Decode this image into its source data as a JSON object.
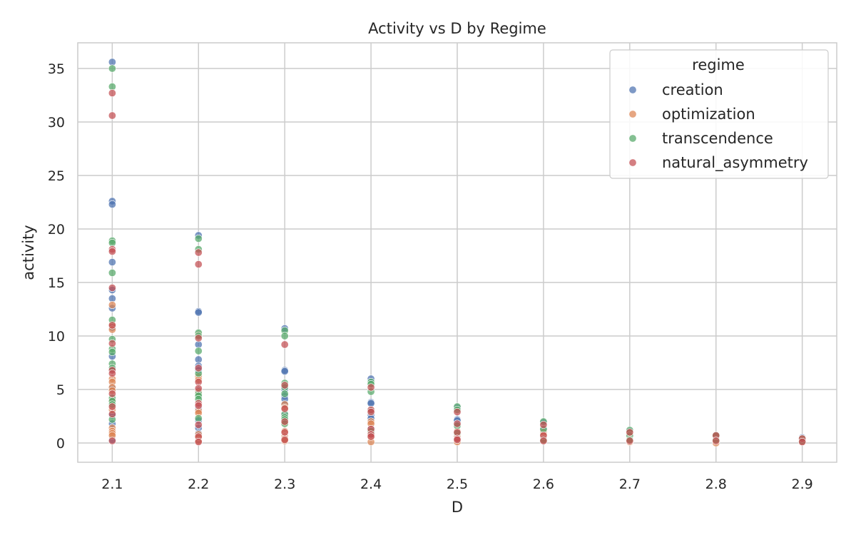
{
  "chart_data": {
    "type": "scatter",
    "title": "Activity vs D by Regime",
    "xlabel": "D",
    "ylabel": "activity",
    "xlim": [
      2.06,
      2.94
    ],
    "ylim": [
      -1.8,
      37.4
    ],
    "xticks": [
      "2.1",
      "2.2",
      "2.3",
      "2.4",
      "2.5",
      "2.6",
      "2.7",
      "2.8",
      "2.9"
    ],
    "yticks": [
      "0",
      "5",
      "10",
      "15",
      "20",
      "25",
      "30",
      "35"
    ],
    "grid": true,
    "legend": {
      "title": "regime",
      "placement": "top-right"
    },
    "series": [
      {
        "name": "creation",
        "color": "#4C72B0",
        "points": [
          [
            2.1,
            35.6
          ],
          [
            2.1,
            22.6
          ],
          [
            2.1,
            22.3
          ],
          [
            2.1,
            16.9
          ],
          [
            2.1,
            14.3
          ],
          [
            2.1,
            13.5
          ],
          [
            2.1,
            12.6
          ],
          [
            2.1,
            10.8
          ],
          [
            2.1,
            8.1
          ],
          [
            2.1,
            6.9
          ],
          [
            2.1,
            5.1
          ],
          [
            2.1,
            2.6
          ],
          [
            2.1,
            1.8
          ],
          [
            2.1,
            0.3
          ],
          [
            2.2,
            19.4
          ],
          [
            2.2,
            12.3
          ],
          [
            2.2,
            12.2
          ],
          [
            2.2,
            9.2
          ],
          [
            2.2,
            7.8
          ],
          [
            2.2,
            7.2
          ],
          [
            2.2,
            6.8
          ],
          [
            2.2,
            4.9
          ],
          [
            2.2,
            3.2
          ],
          [
            2.2,
            2.1
          ],
          [
            2.2,
            1.4
          ],
          [
            2.2,
            0.9
          ],
          [
            2.2,
            0.3
          ],
          [
            2.3,
            10.7
          ],
          [
            2.3,
            6.8
          ],
          [
            2.3,
            6.7
          ],
          [
            2.3,
            5.0
          ],
          [
            2.3,
            4.4
          ],
          [
            2.3,
            4.1
          ],
          [
            2.3,
            3.6
          ],
          [
            2.3,
            2.6
          ],
          [
            2.3,
            0.4
          ],
          [
            2.4,
            6.0
          ],
          [
            2.4,
            3.8
          ],
          [
            2.4,
            3.7
          ],
          [
            2.4,
            2.6
          ],
          [
            2.4,
            2.3
          ],
          [
            2.4,
            1.3
          ],
          [
            2.4,
            0.9
          ],
          [
            2.5,
            3.3
          ],
          [
            2.5,
            2.2
          ],
          [
            2.5,
            2.1
          ],
          [
            2.5,
            1.7
          ],
          [
            2.5,
            0.8
          ],
          [
            2.5,
            0.3
          ],
          [
            2.6,
            1.9
          ],
          [
            2.6,
            1.2
          ],
          [
            2.6,
            0.9
          ],
          [
            2.6,
            0.2
          ],
          [
            2.7,
            1.1
          ],
          [
            2.7,
            0.6
          ],
          [
            2.7,
            0.2
          ],
          [
            2.8,
            0.7
          ],
          [
            2.8,
            0.2
          ],
          [
            2.9,
            0.5
          ],
          [
            2.9,
            0.1
          ]
        ]
      },
      {
        "name": "optimization",
        "color": "#DD8452",
        "points": [
          [
            2.1,
            12.9
          ],
          [
            2.1,
            11.1
          ],
          [
            2.1,
            10.6
          ],
          [
            2.1,
            6.0
          ],
          [
            2.1,
            5.7
          ],
          [
            2.1,
            5.2
          ],
          [
            2.1,
            4.9
          ],
          [
            2.1,
            4.0
          ],
          [
            2.1,
            3.1
          ],
          [
            2.1,
            1.4
          ],
          [
            2.1,
            1.1
          ],
          [
            2.1,
            0.9
          ],
          [
            2.1,
            0.7
          ],
          [
            2.2,
            10.1
          ],
          [
            2.2,
            6.2
          ],
          [
            2.2,
            5.9
          ],
          [
            2.2,
            4.8
          ],
          [
            2.2,
            3.0
          ],
          [
            2.2,
            2.8
          ],
          [
            2.2,
            0.8
          ],
          [
            2.2,
            0.5
          ],
          [
            2.2,
            0.2
          ],
          [
            2.3,
            3.6
          ],
          [
            2.3,
            3.3
          ],
          [
            2.3,
            1.9
          ],
          [
            2.3,
            1.1
          ],
          [
            2.3,
            0.6
          ],
          [
            2.3,
            0.4
          ],
          [
            2.3,
            0.2
          ],
          [
            2.4,
            2.0
          ],
          [
            2.4,
            1.8
          ],
          [
            2.4,
            1.0
          ],
          [
            2.4,
            0.6
          ],
          [
            2.4,
            0.1
          ],
          [
            2.5,
            1.1
          ],
          [
            2.5,
            0.7
          ],
          [
            2.5,
            0.6
          ],
          [
            2.5,
            0.1
          ],
          [
            2.6,
            1.0
          ],
          [
            2.6,
            0.8
          ],
          [
            2.6,
            0.4
          ],
          [
            2.6,
            0.2
          ],
          [
            2.7,
            0.9
          ],
          [
            2.7,
            0.4
          ],
          [
            2.7,
            0.1
          ],
          [
            2.8,
            0.6
          ],
          [
            2.8,
            0.2
          ],
          [
            2.8,
            0.0
          ],
          [
            2.9,
            0.4
          ],
          [
            2.9,
            0.1
          ]
        ]
      },
      {
        "name": "transcendence",
        "color": "#55A868",
        "points": [
          [
            2.1,
            35.0
          ],
          [
            2.1,
            33.3
          ],
          [
            2.1,
            18.9
          ],
          [
            2.1,
            18.7
          ],
          [
            2.1,
            15.9
          ],
          [
            2.1,
            11.5
          ],
          [
            2.1,
            9.7
          ],
          [
            2.1,
            8.8
          ],
          [
            2.1,
            8.5
          ],
          [
            2.1,
            7.4
          ],
          [
            2.1,
            7.0
          ],
          [
            2.1,
            4.2
          ],
          [
            2.1,
            3.9
          ],
          [
            2.1,
            3.6
          ],
          [
            2.1,
            2.2
          ],
          [
            2.2,
            19.1
          ],
          [
            2.2,
            18.1
          ],
          [
            2.2,
            10.3
          ],
          [
            2.2,
            10.0
          ],
          [
            2.2,
            8.6
          ],
          [
            2.2,
            6.5
          ],
          [
            2.2,
            4.6
          ],
          [
            2.2,
            4.4
          ],
          [
            2.2,
            4.1
          ],
          [
            2.2,
            2.3
          ],
          [
            2.3,
            10.5
          ],
          [
            2.3,
            10.0
          ],
          [
            2.3,
            5.6
          ],
          [
            2.3,
            5.2
          ],
          [
            2.3,
            4.6
          ],
          [
            2.3,
            2.7
          ],
          [
            2.3,
            2.4
          ],
          [
            2.3,
            2.2
          ],
          [
            2.3,
            1.8
          ],
          [
            2.4,
            5.7
          ],
          [
            2.4,
            5.5
          ],
          [
            2.4,
            4.8
          ],
          [
            2.4,
            3.0
          ],
          [
            2.4,
            1.1
          ],
          [
            2.5,
            3.4
          ],
          [
            2.5,
            3.1
          ],
          [
            2.5,
            1.6
          ],
          [
            2.5,
            0.9
          ],
          [
            2.6,
            2.0
          ],
          [
            2.6,
            1.3
          ],
          [
            2.6,
            0.3
          ],
          [
            2.7,
            1.2
          ],
          [
            2.7,
            0.7
          ],
          [
            2.7,
            0.3
          ],
          [
            2.8,
            0.7
          ],
          [
            2.8,
            0.3
          ],
          [
            2.9,
            0.4
          ],
          [
            2.9,
            0.2
          ]
        ]
      },
      {
        "name": "natural_asymmetry",
        "color": "#C44E52",
        "points": [
          [
            2.1,
            32.7
          ],
          [
            2.1,
            30.6
          ],
          [
            2.1,
            18.1
          ],
          [
            2.1,
            17.9
          ],
          [
            2.1,
            14.5
          ],
          [
            2.1,
            11.0
          ],
          [
            2.1,
            9.3
          ],
          [
            2.1,
            6.8
          ],
          [
            2.1,
            6.5
          ],
          [
            2.1,
            4.6
          ],
          [
            2.1,
            3.4
          ],
          [
            2.1,
            2.7
          ],
          [
            2.1,
            0.2
          ],
          [
            2.2,
            17.8
          ],
          [
            2.2,
            16.7
          ],
          [
            2.2,
            9.8
          ],
          [
            2.2,
            7.0
          ],
          [
            2.2,
            5.7
          ],
          [
            2.2,
            5.1
          ],
          [
            2.2,
            3.7
          ],
          [
            2.2,
            3.5
          ],
          [
            2.2,
            1.7
          ],
          [
            2.2,
            0.6
          ],
          [
            2.2,
            0.1
          ],
          [
            2.3,
            9.2
          ],
          [
            2.3,
            5.4
          ],
          [
            2.3,
            3.2
          ],
          [
            2.3,
            2.0
          ],
          [
            2.3,
            1.0
          ],
          [
            2.3,
            0.3
          ],
          [
            2.4,
            5.2
          ],
          [
            2.4,
            3.1
          ],
          [
            2.4,
            2.9
          ],
          [
            2.4,
            1.3
          ],
          [
            2.4,
            0.8
          ],
          [
            2.4,
            0.6
          ],
          [
            2.5,
            2.9
          ],
          [
            2.5,
            1.8
          ],
          [
            2.5,
            1.0
          ],
          [
            2.5,
            0.4
          ],
          [
            2.5,
            0.3
          ],
          [
            2.6,
            1.7
          ],
          [
            2.6,
            0.7
          ],
          [
            2.6,
            0.2
          ],
          [
            2.7,
            1.0
          ],
          [
            2.7,
            0.2
          ],
          [
            2.8,
            0.7
          ],
          [
            2.8,
            0.2
          ],
          [
            2.9,
            0.4
          ],
          [
            2.9,
            0.1
          ]
        ]
      }
    ]
  }
}
